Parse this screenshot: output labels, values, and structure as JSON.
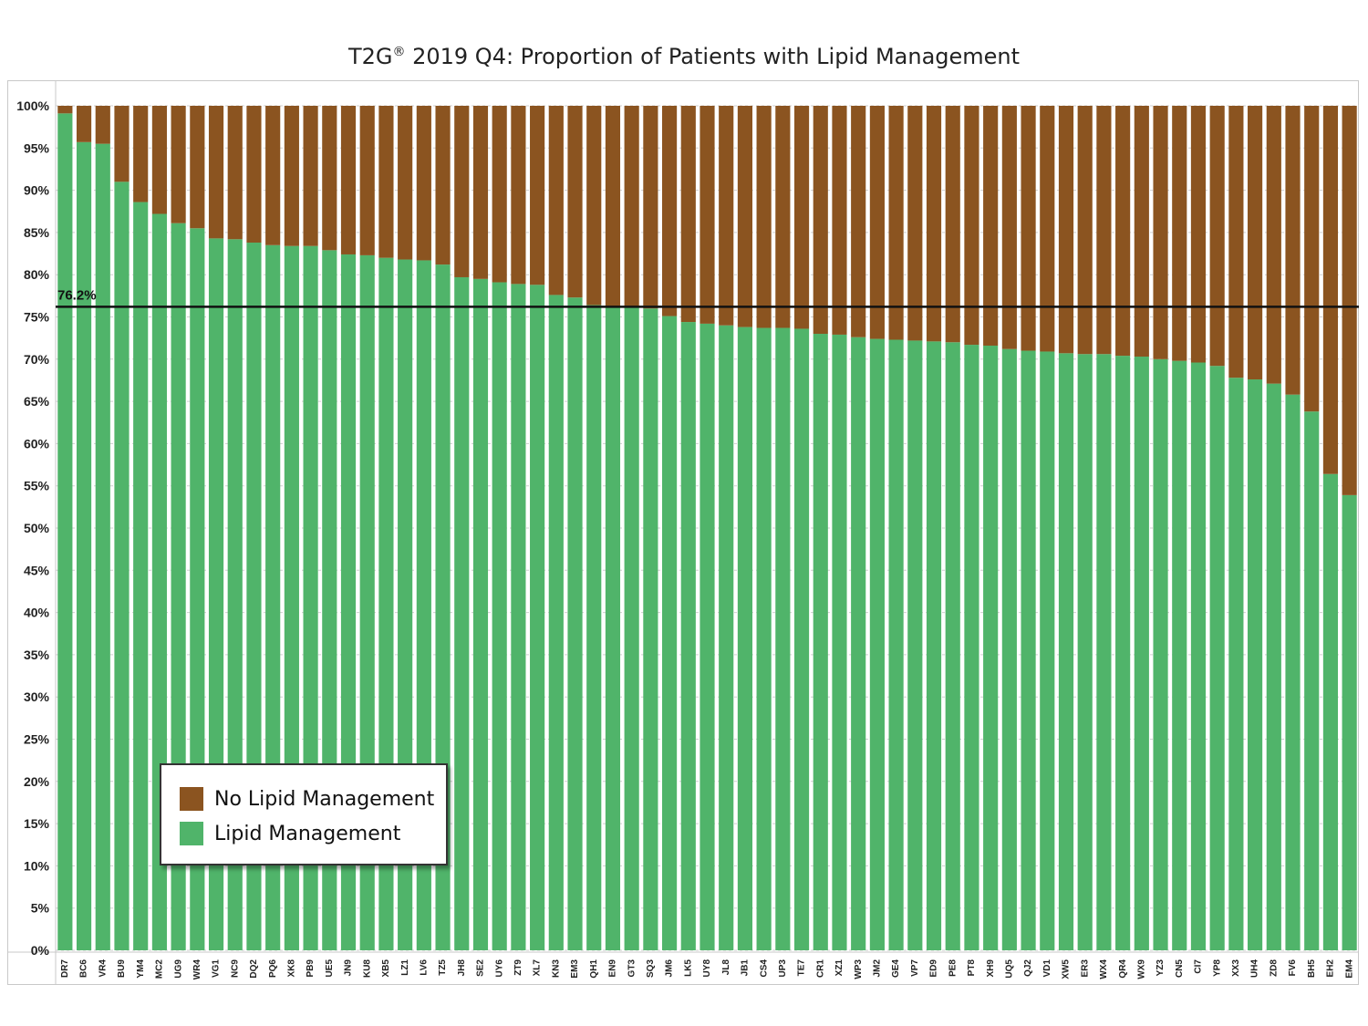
{
  "title_main": "T2G",
  "title_reg": "®",
  "title_rest": " 2019 Q4: Proportion of Patients with Lipid Management",
  "legend": {
    "items": [
      {
        "label": "No Lipid Management",
        "color": "#8B5420"
      },
      {
        "label": "Lipid Management",
        "color": "#50B46A"
      }
    ]
  },
  "chart_data": {
    "type": "bar",
    "stacked": true,
    "title": "T2G® 2019 Q4: Proportion of Patients with Lipid Management",
    "categories": [
      "DR7",
      "BC6",
      "VR4",
      "BU9",
      "YM4",
      "MC2",
      "UG9",
      "WR4",
      "VG1",
      "NC9",
      "DQ2",
      "PQ6",
      "XK8",
      "PB9",
      "UE5",
      "JN9",
      "KU8",
      "XB5",
      "LZ1",
      "LV6",
      "TZ5",
      "JH8",
      "SE2",
      "UY6",
      "ZT9",
      "XL7",
      "KN3",
      "EM3",
      "QH1",
      "EN9",
      "GT3",
      "SQ3",
      "JM6",
      "LK5",
      "UY8",
      "JL8",
      "JB1",
      "CS4",
      "UP3",
      "TE7",
      "CR1",
      "XZ1",
      "WP3",
      "JM2",
      "GE4",
      "VP7",
      "ED9",
      "PE8",
      "PT8",
      "XH9",
      "UQ5",
      "QJ2",
      "VD1",
      "XW5",
      "ER3",
      "WX4",
      "QR4",
      "WX9",
      "YZ3",
      "CN5",
      "CI7",
      "YP8",
      "XX3",
      "UH4",
      "ZD8",
      "FV6",
      "BH5",
      "EH2",
      "EM4"
    ],
    "series": [
      {
        "name": "Lipid Management",
        "color": "#50B46A",
        "values": [
          99.1,
          95.7,
          95.5,
          91.0,
          88.6,
          87.2,
          86.1,
          85.5,
          84.3,
          84.2,
          83.8,
          83.5,
          83.4,
          83.4,
          82.9,
          82.4,
          82.3,
          82.0,
          81.8,
          81.7,
          81.2,
          79.7,
          79.5,
          79.1,
          78.9,
          78.8,
          77.6,
          77.3,
          76.4,
          76.1,
          76.1,
          76.0,
          75.1,
          74.4,
          74.2,
          74.0,
          73.8,
          73.7,
          73.7,
          73.6,
          73.0,
          72.9,
          72.6,
          72.4,
          72.3,
          72.2,
          72.1,
          72.0,
          71.7,
          71.6,
          71.2,
          71.0,
          70.9,
          70.7,
          70.6,
          70.6,
          70.4,
          70.3,
          70.0,
          69.8,
          69.6,
          69.2,
          67.8,
          67.6,
          67.1,
          65.8,
          63.8,
          56.4,
          53.9
        ]
      },
      {
        "name": "No Lipid Management",
        "color": "#8B5420",
        "values": [
          0.9,
          4.3,
          4.5,
          9.0,
          11.4,
          12.8,
          13.9,
          14.5,
          15.7,
          15.8,
          16.2,
          16.5,
          16.6,
          16.6,
          17.1,
          17.6,
          17.7,
          18.0,
          18.2,
          18.3,
          18.8,
          20.3,
          20.5,
          20.9,
          21.1,
          21.2,
          22.4,
          22.7,
          23.6,
          23.9,
          23.9,
          24.0,
          24.9,
          25.6,
          25.8,
          26.0,
          26.2,
          26.3,
          26.3,
          26.4,
          27.0,
          27.1,
          27.4,
          27.6,
          27.7,
          27.8,
          27.9,
          28.0,
          28.3,
          28.4,
          28.8,
          29.0,
          29.1,
          29.3,
          29.4,
          29.4,
          29.6,
          29.7,
          30.0,
          30.2,
          30.4,
          30.8,
          32.2,
          32.4,
          32.9,
          34.2,
          36.2,
          43.6,
          46.1
        ]
      }
    ],
    "y_ticks": [
      "0%",
      "5%",
      "10%",
      "15%",
      "20%",
      "25%",
      "30%",
      "35%",
      "40%",
      "45%",
      "50%",
      "55%",
      "60%",
      "65%",
      "70%",
      "75%",
      "80%",
      "85%",
      "90%",
      "95%",
      "100%"
    ],
    "ylim": [
      0,
      100
    ],
    "reference_line": {
      "value": 76.2,
      "label": "76.2%"
    },
    "grid": true,
    "legend_position": "bottom-left"
  }
}
